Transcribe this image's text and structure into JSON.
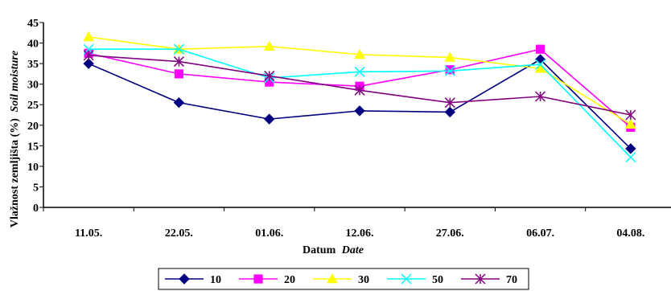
{
  "chart_data": {
    "type": "line",
    "categories": [
      "11.05.",
      "22.05.",
      "01.06.",
      "12.06.",
      "27.06.",
      "06.07.",
      "04.08."
    ],
    "xlabel": "Datum",
    "xlabel_italic": "Date",
    "ylabel": "Vlažnost zemljišta (%)",
    "ylabel_italic": "Soil moisture",
    "ylim": [
      0,
      45
    ],
    "yticks": [
      0,
      5,
      10,
      15,
      20,
      25,
      30,
      35,
      40,
      45
    ],
    "grid": false,
    "legend_position": "bottom",
    "series": [
      {
        "name": "10",
        "color": "#000080",
        "marker": "diamond",
        "values": [
          35,
          25.5,
          21.5,
          23.5,
          23.2,
          36,
          14.3
        ]
      },
      {
        "name": "20",
        "color": "#FF00FF",
        "marker": "square",
        "values": [
          37.5,
          32.5,
          30.5,
          29.5,
          33.5,
          38.5,
          19.5
        ]
      },
      {
        "name": "30",
        "color": "#FFFF00",
        "marker": "triangle",
        "values": [
          41.5,
          38.5,
          39.2,
          37.2,
          36.5,
          33.8,
          20.2
        ]
      },
      {
        "name": "50",
        "color": "#00FFFF",
        "marker": "x",
        "values": [
          38.5,
          38.5,
          31.5,
          33,
          33.2,
          34.8,
          12.2
        ]
      },
      {
        "name": "70",
        "color": "#800080",
        "marker": "star",
        "values": [
          37,
          35.5,
          32,
          28.5,
          25.5,
          27,
          22.5
        ]
      }
    ]
  }
}
